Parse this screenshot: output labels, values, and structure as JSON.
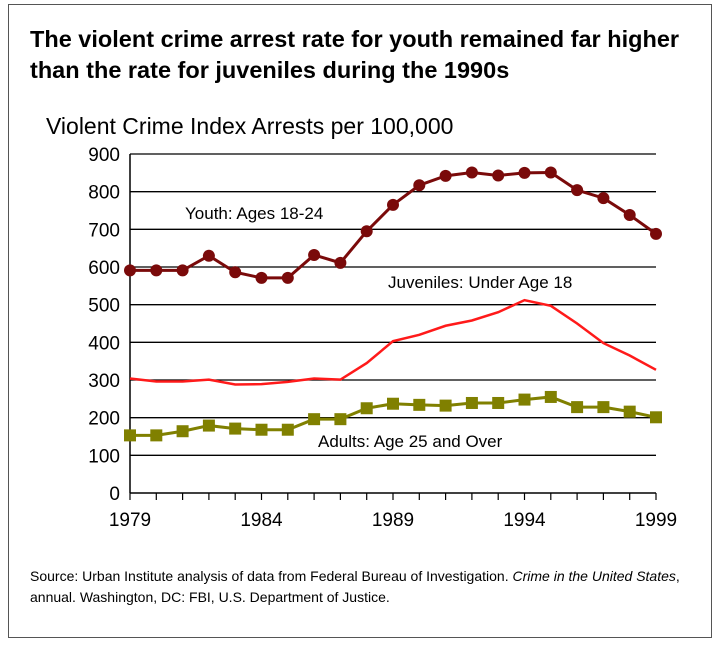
{
  "chart_data": {
    "type": "line",
    "title": "The violent crime arrest rate for youth remained far higher than the rate for juveniles during the 1990s",
    "ylabel": "Violent Crime Index Arrests per 100,000",
    "xlabel": "",
    "x": [
      1979,
      1980,
      1981,
      1982,
      1983,
      1984,
      1985,
      1986,
      1987,
      1988,
      1989,
      1990,
      1991,
      1992,
      1993,
      1994,
      1995,
      1996,
      1997,
      1998,
      1999
    ],
    "xticks": [
      "1979",
      "1984",
      "1989",
      "1994",
      "1999"
    ],
    "yticks": [
      "0",
      "100",
      "200",
      "300",
      "400",
      "500",
      "600",
      "700",
      "800",
      "900"
    ],
    "ylim": [
      0,
      900
    ],
    "grid": true,
    "series": [
      {
        "name": "Youth: Ages 18-24",
        "color": "#7a0a0a",
        "marker": "circle",
        "values": [
          591,
          591,
          591,
          630,
          586,
          571,
          571,
          632,
          611,
          695,
          765,
          817,
          842,
          851,
          843,
          850,
          851,
          804,
          783,
          738,
          688
        ]
      },
      {
        "name": "Juveniles: Under Age 18",
        "color": "#ff1a1a",
        "marker": "none",
        "values": [
          304,
          296,
          296,
          301,
          288,
          289,
          295,
          304,
          301,
          345,
          403,
          420,
          444,
          458,
          480,
          512,
          497,
          450,
          398,
          365,
          327
        ]
      },
      {
        "name": "Adults: Age 25 and Over",
        "color": "#808000",
        "marker": "square",
        "values": [
          153,
          153,
          164,
          179,
          171,
          168,
          168,
          196,
          196,
          225,
          237,
          234,
          232,
          239,
          239,
          248,
          255,
          228,
          228,
          216,
          201
        ]
      }
    ]
  },
  "source": {
    "prefix": "Source: Urban Institute analysis of data from Federal Bureau of Investigation. ",
    "italic1": "Crime in the United States",
    "suffix": ", annual.  Washington, DC: FBI, U.S. Department of Justice."
  }
}
